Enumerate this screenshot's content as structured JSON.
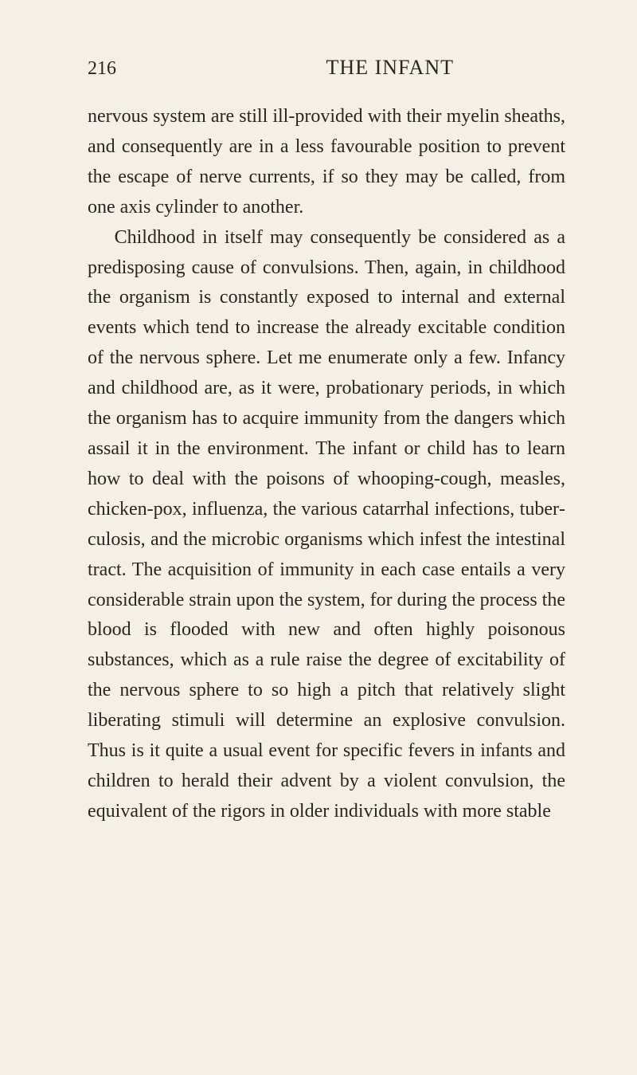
{
  "page": {
    "number": "216",
    "title": "THE INFANT"
  },
  "paragraphs": [
    {
      "indent": false,
      "text": "nervous system are still ill-provided with their myelin sheaths, and consequently are in a less favourable position to prevent the escape of nerve currents, if so they may be called, from one axis cylinder to another."
    },
    {
      "indent": true,
      "text": "Childhood in itself may consequently be considered as a predisposing cause of convulsions. Then, again, in childhood the organism is constantly exposed to internal and external events which tend to increase the already excitable condition of the nervous sphere. Let me enumerate only a few. Infancy and child­hood are, as it were, probationary periods, in which the organism has to acquire immunity from the dangers which assail it in the environment. The infant or child has to learn how to deal with the poisons of whooping-cough, measles, chicken-pox, influenza, the various catarrhal infections, tuber­culosis, and the microbic organisms which infest the intestinal tract. The acquisition of immunity in each case entails a very considerable strain upon the system, for during the process the blood is flooded with new and often highly poisonous substances, which as a rule raise the degree of excitability of the nervous sphere to so high a pitch that relatively slight liberating stimuli will determine an explosive convulsion. Thus is it quite a usual event for specific fevers in infants and children to herald their advent by a violent convulsion, the equivalent of the rigors in older individuals with more stable"
    }
  ],
  "style": {
    "background_color": "#f5f0e6",
    "text_color": "#2a2520",
    "body_fontsize": 24,
    "title_fontsize": 26,
    "number_fontsize": 24,
    "line_height": 1.58,
    "font_family": "Times New Roman"
  }
}
